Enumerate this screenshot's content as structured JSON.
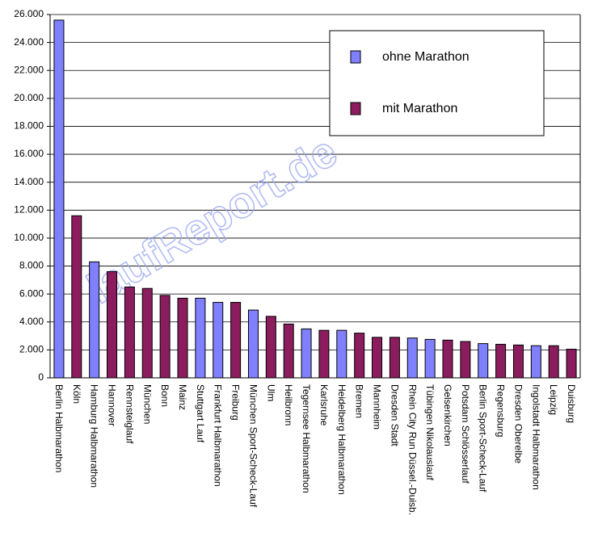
{
  "chart_data": {
    "type": "bar",
    "watermark": "laufReport.de",
    "categories": [
      "Berlin Halbmarathon",
      "Köln",
      "Hamburg Halbmarathon",
      "Hannover",
      "Rennsteiglauf",
      "München",
      "Bonn",
      "Mainz",
      "Stuttgart Lauf",
      "Frankfurt Halbmarathon",
      "Freiburg",
      "München Sport-Scheck-Lauf",
      "Ulm",
      "Heilbronn",
      "Tegernsee Halbmarathon",
      "Karlsruhe",
      "Heidelberg Halbmarathon",
      "Bremen",
      "Mannheim",
      "Dresden Stadt",
      "Rhein City Run Düssel.-Duisb.",
      "Tübingen Nikolauslauf",
      "Gelsenkirchen",
      "Potsdam Schlösserlauf",
      "Berlin Sport-Scheck-Lauf",
      "Regensburg",
      "Dresden Oberelbe",
      "Ingolstadt Halbmarathon",
      "Leipzig",
      "Duisburg"
    ],
    "series": [
      {
        "name": "ohne Marathon",
        "color": "#8080ff",
        "values": [
          25600,
          null,
          8300,
          null,
          null,
          null,
          null,
          null,
          5700,
          5400,
          null,
          4850,
          null,
          null,
          3500,
          null,
          3400,
          null,
          null,
          null,
          2850,
          2750,
          null,
          null,
          2450,
          null,
          null,
          2300,
          null,
          null
        ]
      },
      {
        "name": "mit Marathon",
        "color": "#8b1c5e",
        "values": [
          null,
          11600,
          null,
          7600,
          6500,
          6400,
          5900,
          5700,
          null,
          null,
          5400,
          null,
          4400,
          3850,
          null,
          3400,
          null,
          3200,
          2900,
          2900,
          null,
          null,
          2700,
          2600,
          null,
          2400,
          2350,
          null,
          2300,
          2050
        ]
      }
    ],
    "ylim": [
      0,
      26000
    ],
    "yticks": [
      0,
      {
        "value": 2000,
        "label": "2.000"
      },
      {
        "value": 4000,
        "label": "4.000"
      },
      {
        "value": 6000,
        "label": "6.000"
      },
      {
        "value": 8000,
        "label": "8.000"
      },
      {
        "value": 10000,
        "label": "10.000"
      },
      {
        "value": 12000,
        "label": "12.000"
      },
      {
        "value": 14000,
        "label": "14.000"
      },
      {
        "value": 16000,
        "label": "16.000"
      },
      {
        "value": 18000,
        "label": "18.000"
      },
      {
        "value": 20000,
        "label": "20.000"
      },
      {
        "value": 22000,
        "label": "22.000"
      },
      {
        "value": 24000,
        "label": "24.000"
      },
      {
        "value": 26000,
        "label": "26.000"
      }
    ],
    "grid": true
  }
}
